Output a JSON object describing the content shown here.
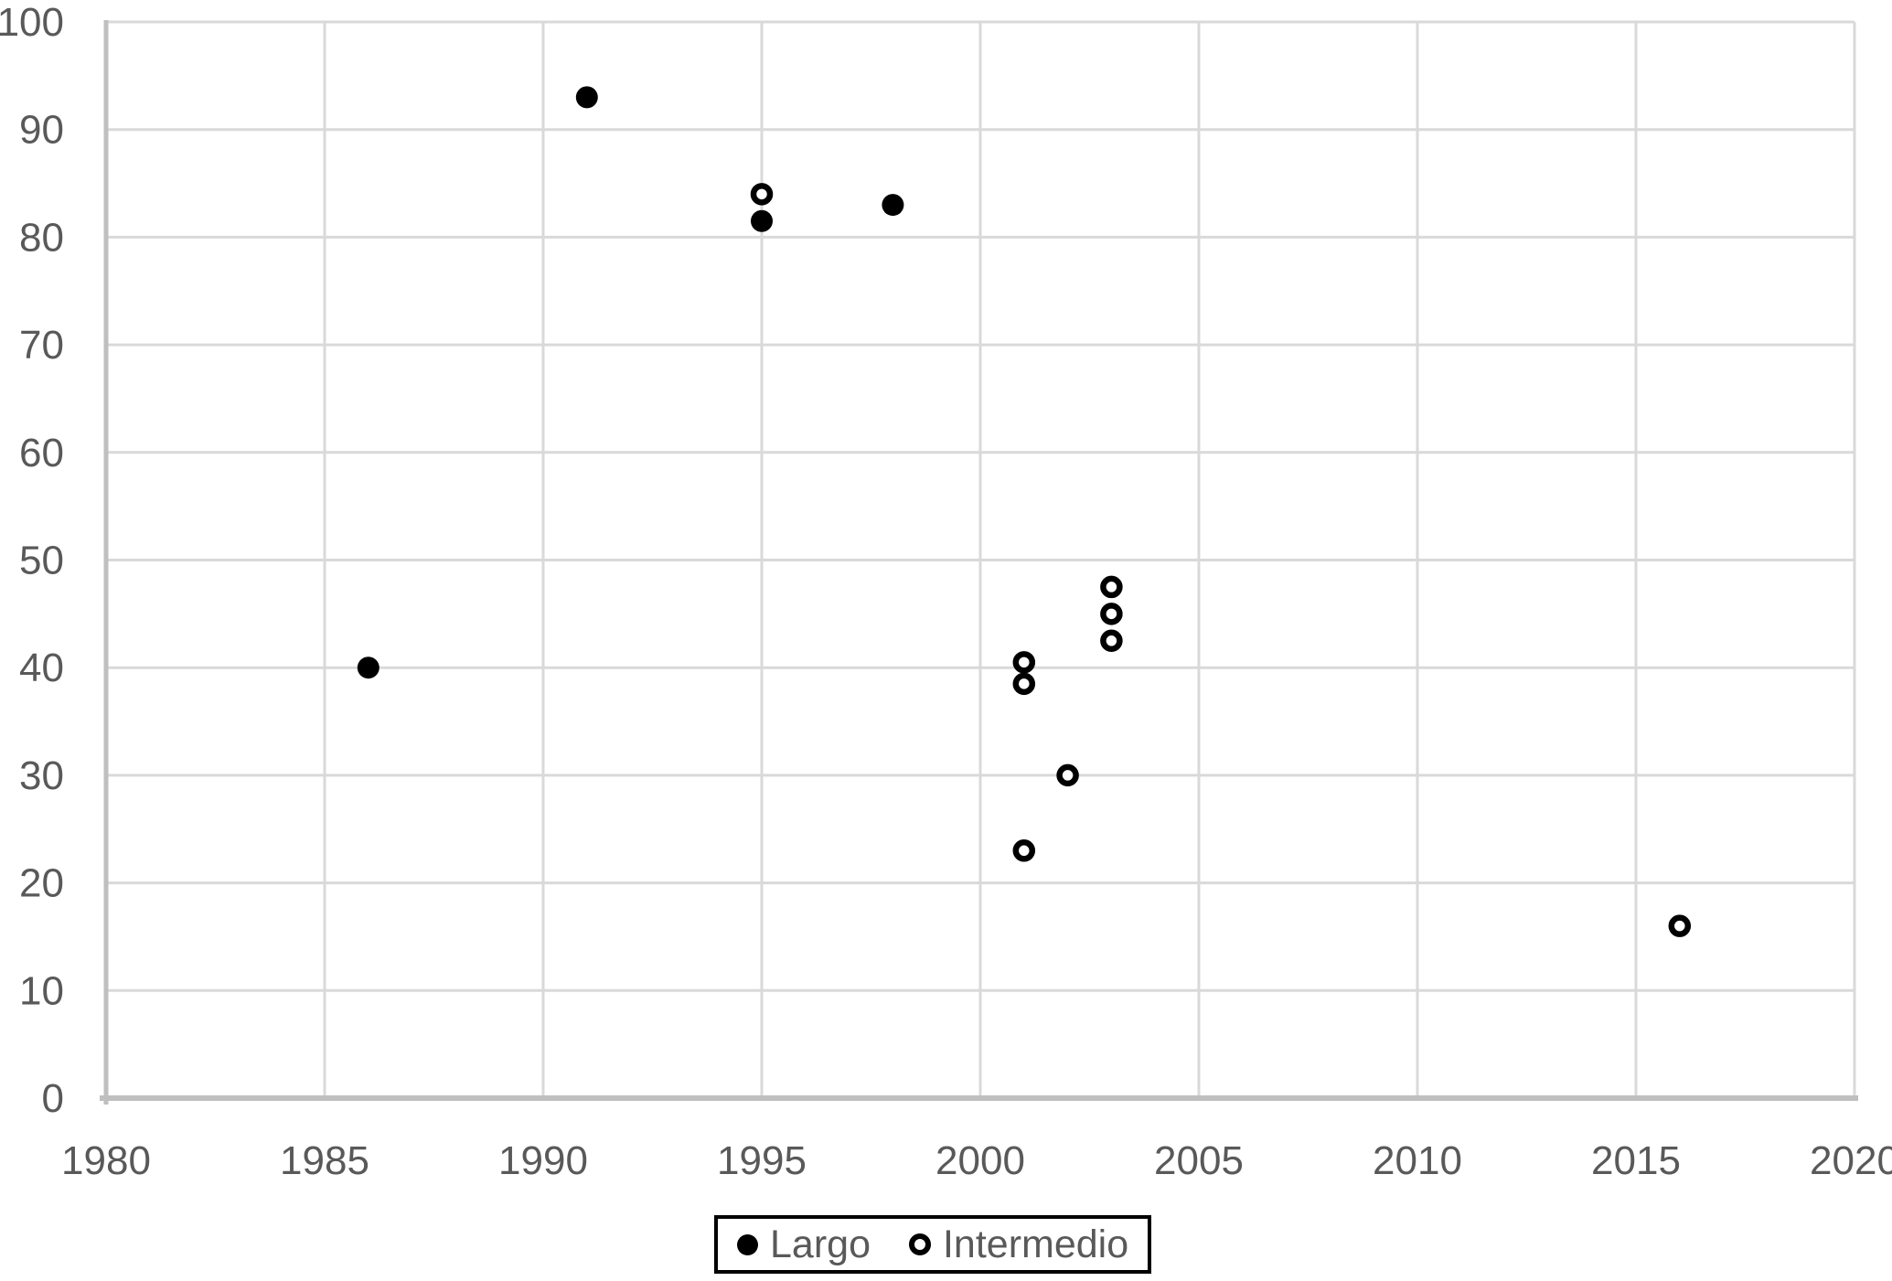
{
  "chart_data": {
    "type": "scatter",
    "title": "",
    "xlabel": "",
    "ylabel": "",
    "grid": true,
    "legend_position": "bottom-center",
    "x_axis": {
      "min": 1980,
      "max": 2020,
      "tick_step": 5,
      "tick_labels": [
        "1980",
        "1985",
        "1990",
        "1995",
        "2000",
        "2005",
        "2010",
        "2015",
        "2020"
      ]
    },
    "y_axis": {
      "min": 0,
      "max": 100,
      "tick_step": 10,
      "tick_labels": [
        "0",
        "10",
        "20",
        "30",
        "40",
        "50",
        "60",
        "70",
        "80",
        "90",
        "100"
      ]
    },
    "series": [
      {
        "name": "Largo",
        "marker": "filled-circle",
        "points": [
          {
            "x": 1986,
            "y": 40
          },
          {
            "x": 1991,
            "y": 93
          },
          {
            "x": 1995,
            "y": 81.5
          },
          {
            "x": 1998,
            "y": 83
          }
        ]
      },
      {
        "name": "Intermedio",
        "marker": "open-circle",
        "points": [
          {
            "x": 1995,
            "y": 84
          },
          {
            "x": 2001,
            "y": 40.5
          },
          {
            "x": 2001,
            "y": 38.5
          },
          {
            "x": 2001,
            "y": 23
          },
          {
            "x": 2002,
            "y": 30
          },
          {
            "x": 2003,
            "y": 47.5
          },
          {
            "x": 2003,
            "y": 45
          },
          {
            "x": 2003,
            "y": 42.5
          },
          {
            "x": 2016,
            "y": 16
          }
        ]
      }
    ],
    "colors": {
      "marker": "#000000",
      "gridline": "#D9D9D9",
      "axis_line": "#BFBFBF",
      "tick_label": "#595959",
      "legend_text": "#595959",
      "legend_border": "#000000",
      "background": "#FFFFFF"
    }
  }
}
